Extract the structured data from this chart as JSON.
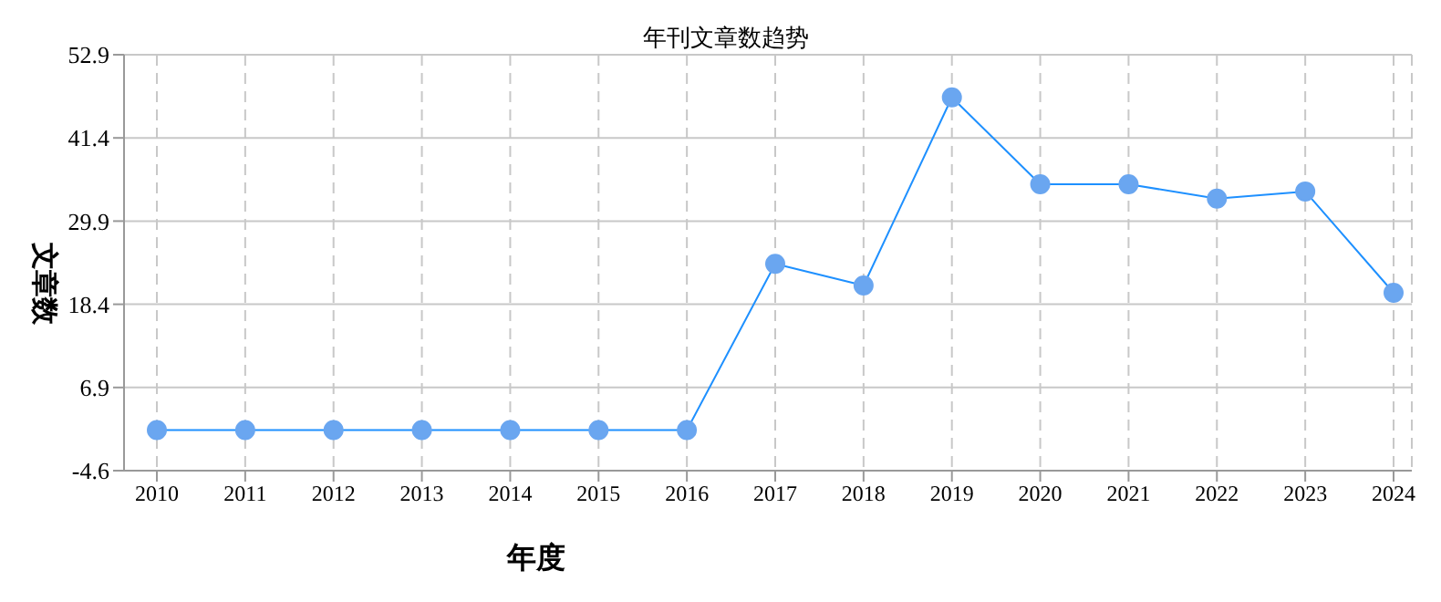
{
  "chart_data": {
    "type": "line",
    "title": "年刊文章数趋势",
    "xlabel": "年度",
    "ylabel": "文章数",
    "categories": [
      "2010",
      "2011",
      "2012",
      "2013",
      "2014",
      "2015",
      "2016",
      "2017",
      "2018",
      "2019",
      "2020",
      "2021",
      "2022",
      "2023",
      "2024"
    ],
    "series": [
      {
        "color": "#1e90ff",
        "values": [
          1,
          1,
          1,
          1,
          1,
          1,
          1,
          24,
          21,
          47,
          35,
          35,
          33,
          34,
          20
        ]
      }
    ],
    "ylim": [
      -4.6,
      52.9
    ],
    "yticks": [
      -4.6,
      6.9,
      18.4,
      29.9,
      41.4,
      52.9
    ],
    "grid": true,
    "marker": "circle",
    "legend": false
  }
}
